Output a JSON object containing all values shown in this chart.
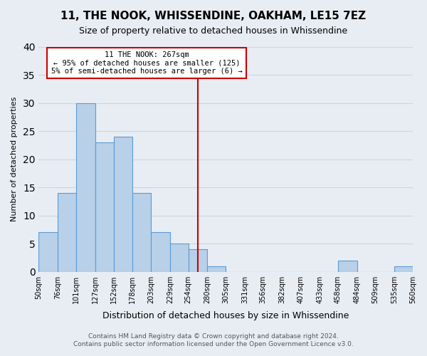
{
  "title": "11, THE NOOK, WHISSENDINE, OAKHAM, LE15 7EZ",
  "subtitle": "Size of property relative to detached houses in Whissendine",
  "xlabel": "Distribution of detached houses by size in Whissendine",
  "ylabel": "Number of detached properties",
  "bar_edges": [
    50,
    76,
    101,
    127,
    152,
    178,
    203,
    229,
    254,
    280,
    305,
    331,
    356,
    382,
    407,
    433,
    458,
    484,
    509,
    535,
    560
  ],
  "bar_heights": [
    7,
    14,
    30,
    23,
    24,
    14,
    7,
    5,
    4,
    1,
    0,
    0,
    0,
    0,
    0,
    0,
    2,
    0,
    0,
    1
  ],
  "bar_color": "#b8d0e8",
  "bar_edge_color": "#5b9bd5",
  "vline_x": 267,
  "vline_color": "#cc0000",
  "annotation_line1": "11 THE NOOK: 267sqm",
  "annotation_line2": "← 95% of detached houses are smaller (125)",
  "annotation_line3": "5% of semi-detached houses are larger (6) →",
  "annotation_box_color": "#cc0000",
  "annotation_box_fill": "#ffffff",
  "ylim": [
    0,
    40
  ],
  "yticks": [
    0,
    5,
    10,
    15,
    20,
    25,
    30,
    35,
    40
  ],
  "grid_color": "#ccd5e0",
  "background_color": "#e8edf4",
  "footer_line1": "Contains HM Land Registry data © Crown copyright and database right 2024.",
  "footer_line2": "Contains public sector information licensed under the Open Government Licence v3.0.",
  "tick_labels": [
    "50sqm",
    "76sqm",
    "101sqm",
    "127sqm",
    "152sqm",
    "178sqm",
    "203sqm",
    "229sqm",
    "254sqm",
    "280sqm",
    "305sqm",
    "331sqm",
    "356sqm",
    "382sqm",
    "407sqm",
    "433sqm",
    "458sqm",
    "484sqm",
    "509sqm",
    "535sqm",
    "560sqm"
  ]
}
